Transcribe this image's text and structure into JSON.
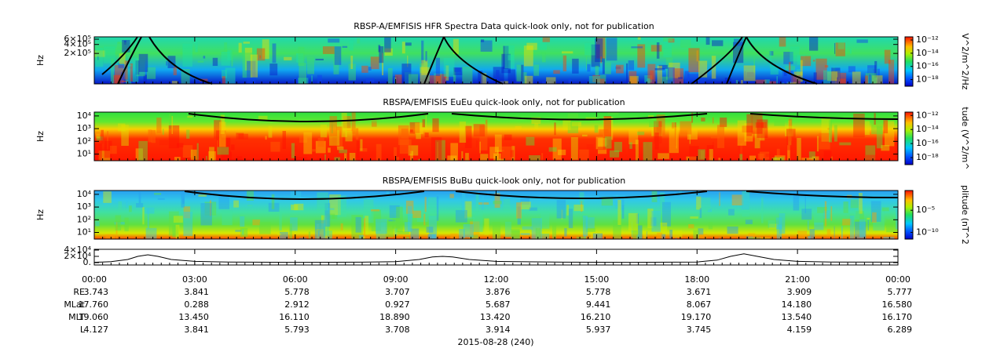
{
  "chart_data": [
    {
      "type": "spectrogram",
      "title": "RBSP-A/EMFISIS  HFR Spectra Data quick-look only, not for publication",
      "ylabel": "Hz",
      "log_y": true,
      "ylim": [
        19000,
        720000
      ],
      "yticks": [
        {
          "value": 600000,
          "label": "6×10⁵"
        },
        {
          "value": 400000,
          "label": "4×10⁵"
        },
        {
          "value": 200000,
          "label": "2×10⁵"
        }
      ],
      "colorbar": {
        "label": "V^2/m^2/Hz",
        "clim": [
          1e-19,
          3e-12
        ],
        "ticks": [
          {
            "value": 1e-12,
            "label": "10⁻¹²"
          },
          {
            "value": 1e-14,
            "label": "10⁻¹⁴"
          },
          {
            "value": 1e-16,
            "label": "10⁻¹⁶"
          },
          {
            "value": 1e-18,
            "label": "10⁻¹⁸"
          }
        ]
      }
    },
    {
      "type": "spectrogram",
      "title": "RBSPA/EMFISIS  EuEu quick-look only, not for publication",
      "ylabel": "Hz",
      "log_y": true,
      "ylim": [
        3,
        20000
      ],
      "yticks": [
        {
          "value": 10000,
          "label": "10⁴"
        },
        {
          "value": 1000,
          "label": "10³"
        },
        {
          "value": 100,
          "label": "10²"
        },
        {
          "value": 10,
          "label": "10¹"
        }
      ],
      "colorbar": {
        "label": "tude (V^2/m^",
        "clim": [
          1e-19,
          3e-12
        ],
        "ticks": [
          {
            "value": 1e-12,
            "label": "10⁻¹²"
          },
          {
            "value": 1e-14,
            "label": "10⁻¹⁴"
          },
          {
            "value": 1e-16,
            "label": "10⁻¹⁶"
          },
          {
            "value": 1e-18,
            "label": "10⁻¹⁸"
          }
        ]
      }
    },
    {
      "type": "spectrogram",
      "title": "RBSPA/EMFISIS  BuBu quick-look only, not for publication",
      "ylabel": "Hz",
      "log_y": true,
      "ylim": [
        3,
        20000
      ],
      "yticks": [
        {
          "value": 10000,
          "label": "10⁴"
        },
        {
          "value": 1000,
          "label": "10³"
        },
        {
          "value": 100,
          "label": "10²"
        },
        {
          "value": 10,
          "label": "10¹"
        }
      ],
      "colorbar": {
        "label": "plitude (nT^2",
        "clim": [
          3e-12,
          0.3
        ],
        "ticks": [
          {
            "value": 1e-05,
            "label": "10⁻⁵"
          },
          {
            "value": 1e-10,
            "label": "10⁻¹⁰"
          }
        ]
      }
    },
    {
      "type": "line",
      "color": "#000000",
      "ylim": [
        -7500,
        42500
      ],
      "yticks": [
        {
          "value": 40000,
          "label": "4×10⁴"
        },
        {
          "value": 20000,
          "label": "2×10⁴"
        },
        {
          "value": 0,
          "label": "0."
        }
      ],
      "xlim": [
        0,
        24
      ],
      "xticks": [
        {
          "value": 0,
          "label": "00:00"
        },
        {
          "value": 3,
          "label": "03:00"
        },
        {
          "value": 6,
          "label": "06:00"
        },
        {
          "value": 9,
          "label": "09:00"
        },
        {
          "value": 12,
          "label": "12:00"
        },
        {
          "value": 15,
          "label": "15:00"
        },
        {
          "value": 18,
          "label": "18:00"
        },
        {
          "value": 21,
          "label": "21:00"
        },
        {
          "value": 24,
          "label": "00:00"
        }
      ],
      "x": [
        0,
        0.5,
        1,
        1.3,
        1.6,
        1.9,
        2.3,
        3,
        4,
        6,
        8,
        9,
        9.7,
        10.1,
        10.4,
        10.7,
        11.2,
        12,
        14,
        16,
        18,
        18.6,
        19,
        19.4,
        19.8,
        20.3,
        21,
        22,
        24
      ],
      "values": [
        1000,
        3000,
        10000,
        20000,
        25000,
        20000,
        10000,
        4000,
        2000,
        1000,
        1500,
        3000,
        10000,
        18000,
        20000,
        18000,
        10000,
        4000,
        1500,
        1000,
        2000,
        8000,
        20000,
        28000,
        20000,
        10000,
        4000,
        2000,
        1500
      ]
    }
  ],
  "ephemeris": {
    "rows": [
      {
        "label": "RE",
        "values": [
          "3.743",
          "3.841",
          "5.778",
          "3.707",
          "3.876",
          "5.778",
          "3.671",
          "3.909",
          "5.777"
        ]
      },
      {
        "label": "MLat",
        "values": [
          "17.760",
          "0.288",
          "2.912",
          "0.927",
          "5.687",
          "9.441",
          "8.067",
          "14.180",
          "16.580"
        ]
      },
      {
        "label": "MLT",
        "values": [
          "19.060",
          "13.450",
          "16.110",
          "18.890",
          "13.420",
          "16.210",
          "19.170",
          "13.540",
          "16.170"
        ]
      },
      {
        "label": "L",
        "values": [
          "4.127",
          "3.841",
          "5.793",
          "3.708",
          "3.914",
          "5.937",
          "3.745",
          "4.159",
          "6.289"
        ]
      }
    ],
    "date": "2015-08-28 (240)"
  }
}
